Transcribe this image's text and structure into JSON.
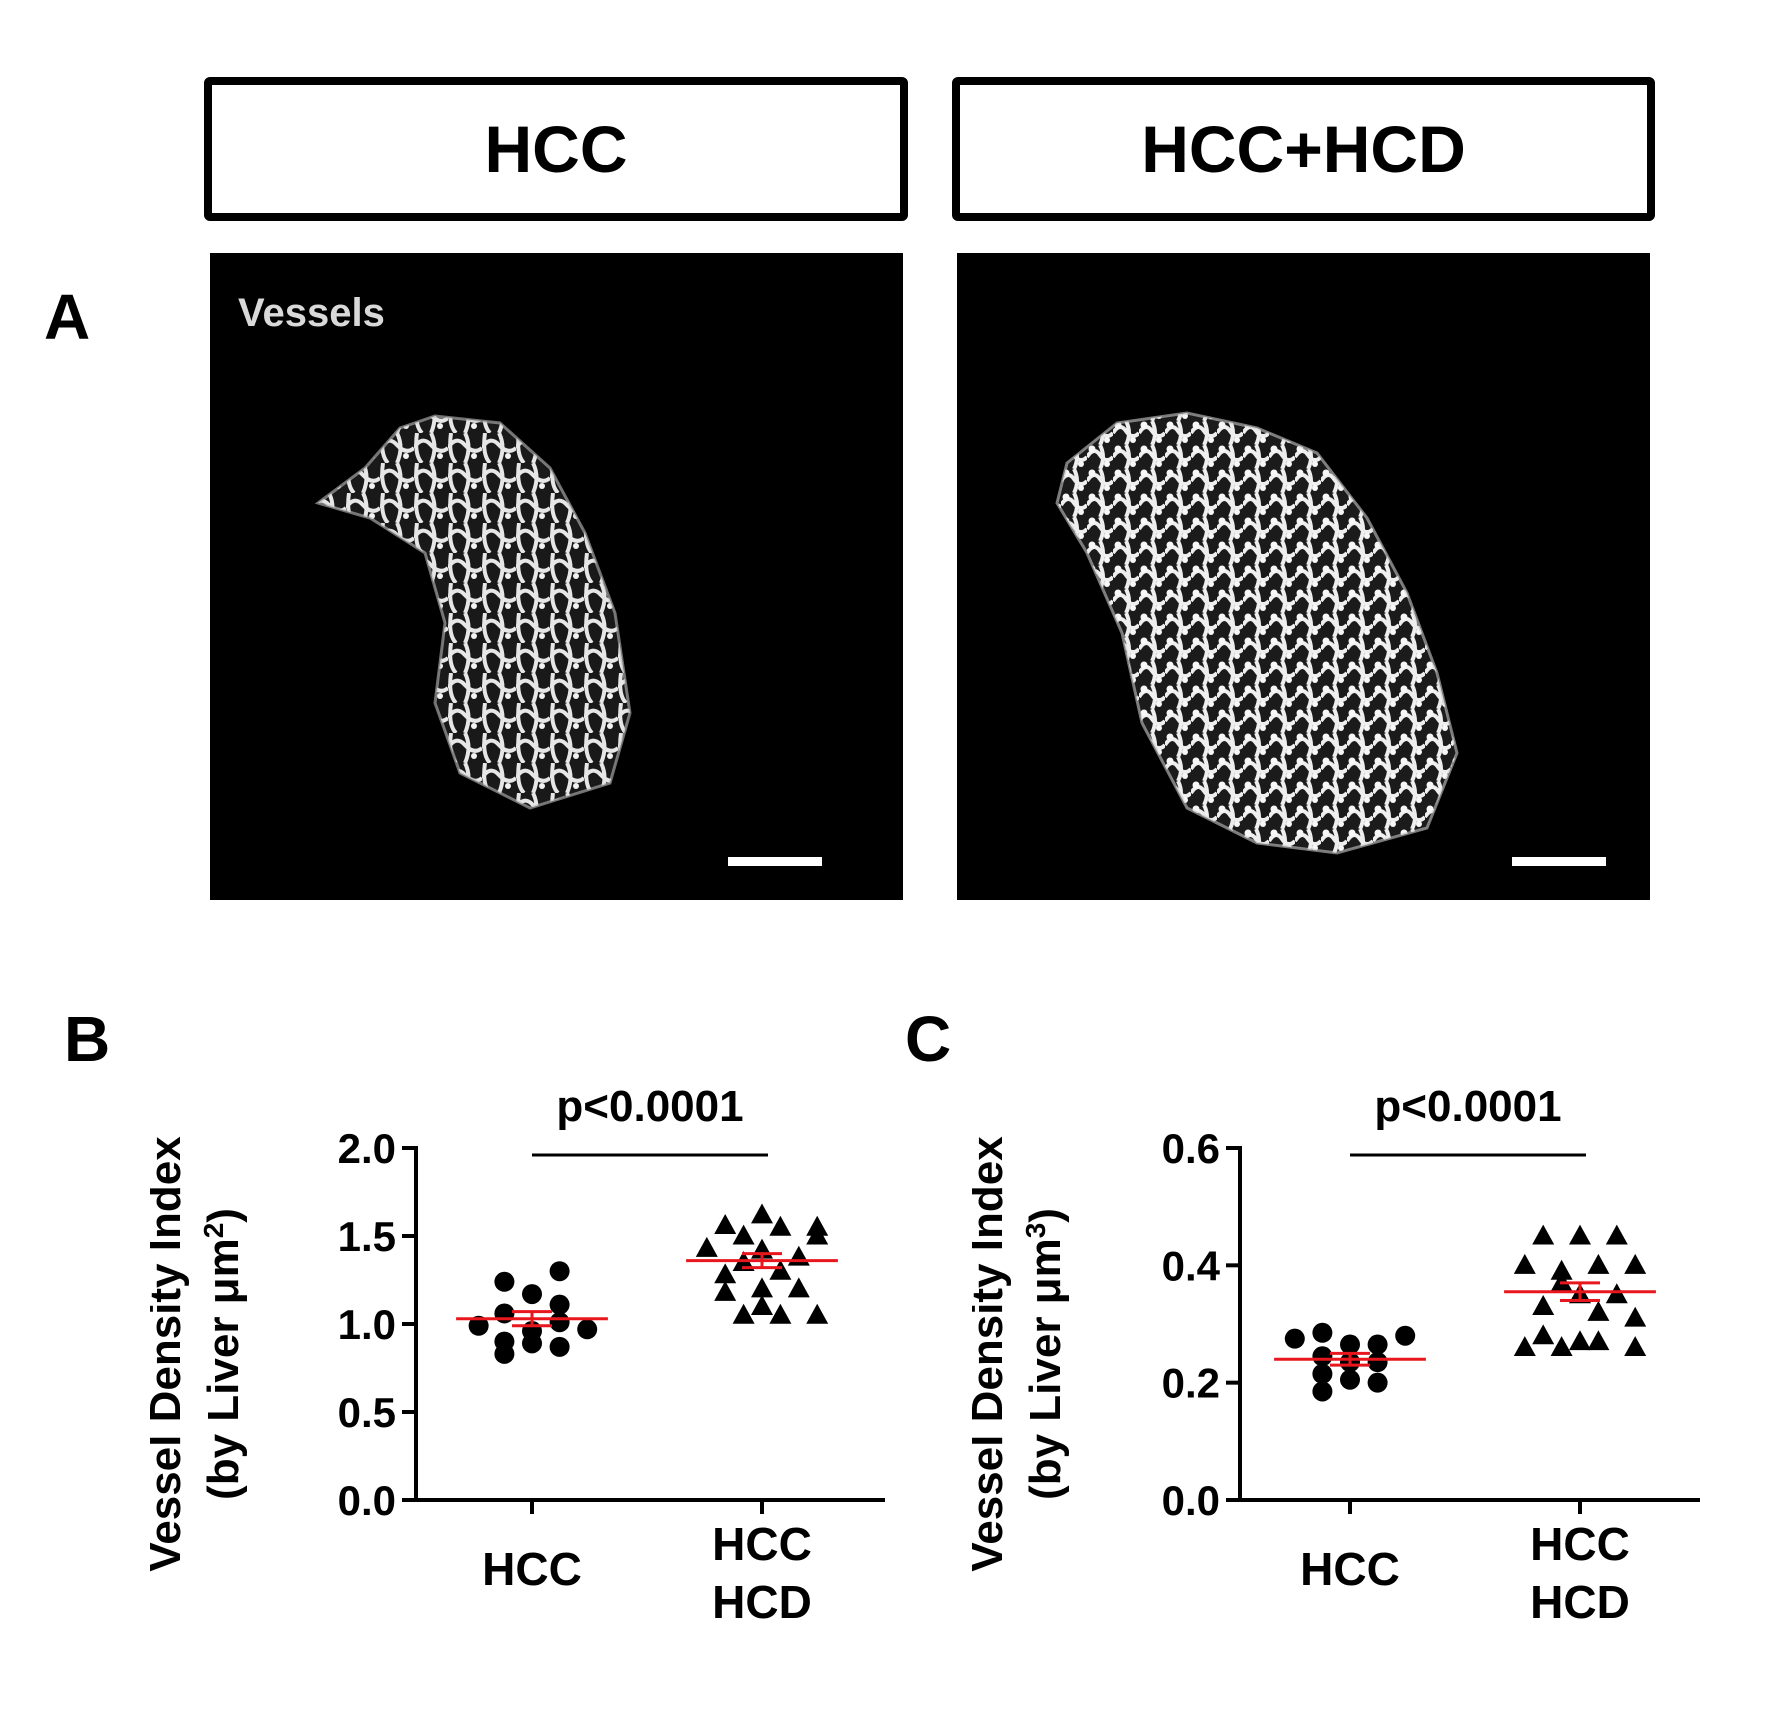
{
  "header": {
    "left_label": "HCC",
    "right_label": "HCC+HCD"
  },
  "panel_a": {
    "letter": "A",
    "image_label": "Vessels"
  },
  "colors": {
    "mean_line": "#e8161d",
    "marker": "#000000"
  },
  "chart_data": [
    {
      "type": "scatter",
      "letter": "B",
      "title": "",
      "ylabel_line1": "Vessel Density Index",
      "ylabel_line2_prefix": "(by Liver μm",
      "ylabel_sup": "2",
      "ylabel_line2_suffix": ")",
      "ylim": [
        0,
        2.0
      ],
      "yticks": [
        {
          "value": 0.0,
          "label": "0.0"
        },
        {
          "value": 0.5,
          "label": "0.5"
        },
        {
          "value": 1.0,
          "label": "1.0"
        },
        {
          "value": 1.5,
          "label": "1.5"
        },
        {
          "value": 2.0,
          "label": "2.0"
        }
      ],
      "categories": [
        {
          "line1": "HCC",
          "line2": ""
        },
        {
          "line1": "HCC",
          "line2": "HCD"
        }
      ],
      "annotation": "p<0.0001",
      "series": [
        {
          "marker": "circle",
          "mean": 1.03,
          "sem": 0.04,
          "points": [
            {
              "dx": -0.29,
              "y": 0.99
            },
            {
              "dx": -0.15,
              "y": 1.06
            },
            {
              "dx": -0.15,
              "y": 0.9
            },
            {
              "dx": -0.15,
              "y": 0.83
            },
            {
              "dx": -0.15,
              "y": 1.24
            },
            {
              "dx": 0.0,
              "y": 1.17
            },
            {
              "dx": 0.0,
              "y": 0.96
            },
            {
              "dx": 0.0,
              "y": 0.89
            },
            {
              "dx": 0.15,
              "y": 1.11
            },
            {
              "dx": 0.15,
              "y": 1.01
            },
            {
              "dx": 0.15,
              "y": 0.87
            },
            {
              "dx": 0.15,
              "y": 1.3
            },
            {
              "dx": 0.3,
              "y": 0.97
            }
          ]
        },
        {
          "marker": "triangle",
          "mean": 1.36,
          "sem": 0.04,
          "points": [
            {
              "dx": -0.3,
              "y": 1.43
            },
            {
              "dx": -0.2,
              "y": 1.56
            },
            {
              "dx": -0.2,
              "y": 1.28
            },
            {
              "dx": -0.2,
              "y": 1.18
            },
            {
              "dx": -0.1,
              "y": 1.35
            },
            {
              "dx": -0.1,
              "y": 1.5
            },
            {
              "dx": -0.1,
              "y": 1.05
            },
            {
              "dx": 0.0,
              "y": 1.42
            },
            {
              "dx": 0.0,
              "y": 1.2
            },
            {
              "dx": 0.0,
              "y": 1.1
            },
            {
              "dx": 0.0,
              "y": 1.62
            },
            {
              "dx": 0.1,
              "y": 1.55
            },
            {
              "dx": 0.1,
              "y": 1.3
            },
            {
              "dx": 0.1,
              "y": 1.05
            },
            {
              "dx": 0.2,
              "y": 1.38
            },
            {
              "dx": 0.2,
              "y": 1.2
            },
            {
              "dx": 0.3,
              "y": 1.5
            },
            {
              "dx": 0.3,
              "y": 1.05
            },
            {
              "dx": 0.3,
              "y": 1.55
            }
          ]
        }
      ]
    },
    {
      "type": "scatter",
      "letter": "C",
      "title": "",
      "ylabel_line1": "Vessel Density Index",
      "ylabel_line2_prefix": "(by Liver μm",
      "ylabel_sup": "3",
      "ylabel_line2_suffix": ")",
      "ylim": [
        0,
        0.6
      ],
      "yticks": [
        {
          "value": 0.0,
          "label": "0.0"
        },
        {
          "value": 0.2,
          "label": "0.2"
        },
        {
          "value": 0.4,
          "label": "0.4"
        },
        {
          "value": 0.6,
          "label": "0.6"
        }
      ],
      "categories": [
        {
          "line1": "HCC",
          "line2": ""
        },
        {
          "line1": "HCC",
          "line2": "HCD"
        }
      ],
      "annotation": "p<0.0001",
      "series": [
        {
          "marker": "circle",
          "mean": 0.24,
          "sem": 0.01,
          "points": [
            {
              "dx": -0.3,
              "y": 0.275
            },
            {
              "dx": -0.15,
              "y": 0.245
            },
            {
              "dx": -0.15,
              "y": 0.215
            },
            {
              "dx": -0.15,
              "y": 0.185
            },
            {
              "dx": -0.15,
              "y": 0.285
            },
            {
              "dx": 0.0,
              "y": 0.265
            },
            {
              "dx": 0.0,
              "y": 0.235
            },
            {
              "dx": 0.0,
              "y": 0.205
            },
            {
              "dx": 0.15,
              "y": 0.265
            },
            {
              "dx": 0.15,
              "y": 0.235
            },
            {
              "dx": 0.15,
              "y": 0.2
            },
            {
              "dx": 0.3,
              "y": 0.28
            }
          ]
        },
        {
          "marker": "triangle",
          "mean": 0.355,
          "sem": 0.015,
          "points": [
            {
              "dx": -0.3,
              "y": 0.4
            },
            {
              "dx": -0.3,
              "y": 0.26
            },
            {
              "dx": -0.2,
              "y": 0.45
            },
            {
              "dx": -0.2,
              "y": 0.33
            },
            {
              "dx": -0.2,
              "y": 0.28
            },
            {
              "dx": -0.1,
              "y": 0.39
            },
            {
              "dx": -0.1,
              "y": 0.37
            },
            {
              "dx": -0.1,
              "y": 0.26
            },
            {
              "dx": 0.0,
              "y": 0.45
            },
            {
              "dx": 0.0,
              "y": 0.35
            },
            {
              "dx": 0.0,
              "y": 0.27
            },
            {
              "dx": 0.1,
              "y": 0.4
            },
            {
              "dx": 0.1,
              "y": 0.32
            },
            {
              "dx": 0.1,
              "y": 0.27
            },
            {
              "dx": 0.2,
              "y": 0.45
            },
            {
              "dx": 0.2,
              "y": 0.35
            },
            {
              "dx": 0.3,
              "y": 0.4
            },
            {
              "dx": 0.3,
              "y": 0.26
            },
            {
              "dx": 0.3,
              "y": 0.31
            }
          ]
        }
      ]
    }
  ]
}
